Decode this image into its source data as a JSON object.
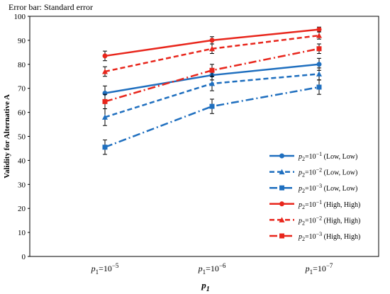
{
  "note": "Error bar: Standard error",
  "chart_data": {
    "type": "line",
    "title": "",
    "categories": [
      "p1=10^-5",
      "p1=10^-6",
      "p1=10^-7"
    ],
    "category_labels": [
      {
        "base": "p",
        "sub": "1",
        "eq": "=10",
        "exp": "−5"
      },
      {
        "base": "p",
        "sub": "1",
        "eq": "=10",
        "exp": "−6"
      },
      {
        "base": "p",
        "sub": "1",
        "eq": "=10",
        "exp": "−7"
      }
    ],
    "xlabel": {
      "base": "p",
      "sub": "1"
    },
    "ylabel": "Validity for Alternative A",
    "ylim": [
      0,
      100
    ],
    "yticks": [
      0,
      10,
      20,
      30,
      40,
      50,
      60,
      70,
      80,
      90,
      100
    ],
    "grid": false,
    "legend_position": "right",
    "series": [
      {
        "name": "p2=10^-1 (Low, Low)",
        "label": {
          "base": "p",
          "sub": "2",
          "eq": "=10",
          "exp": "−1",
          "rest": " (Low, Low)"
        },
        "color": "#1f6fbf",
        "dash": "solid",
        "marker": "circle",
        "values": [
          68,
          75.5,
          80
        ],
        "errors": [
          3,
          2,
          2.5
        ]
      },
      {
        "name": "p2=10^-2 (Low, Low)",
        "label": {
          "base": "p",
          "sub": "2",
          "eq": "=10",
          "exp": "−2",
          "rest": " (Low, Low)"
        },
        "color": "#1f6fbf",
        "dash": "dashed",
        "marker": "triangle",
        "values": [
          58,
          72,
          76
        ],
        "errors": [
          3.5,
          3,
          2.5
        ]
      },
      {
        "name": "p2=10^-3 (Low, Low)",
        "label": {
          "base": "p",
          "sub": "2",
          "eq": "=10",
          "exp": "−3",
          "rest": " (Low, Low)"
        },
        "color": "#1f6fbf",
        "dash": "dashdot",
        "marker": "square",
        "values": [
          45.5,
          62.5,
          70.5
        ],
        "errors": [
          3,
          3,
          3
        ]
      },
      {
        "name": "p2=10^-1 (High, High)",
        "label": {
          "base": "p",
          "sub": "2",
          "eq": "=10",
          "exp": "−1",
          "rest": " (High, High)"
        },
        "color": "#e8261c",
        "dash": "solid",
        "marker": "circle",
        "values": [
          83.5,
          90,
          94.5
        ],
        "errors": [
          2,
          1.5,
          1
        ]
      },
      {
        "name": "p2=10^-2 (High, High)",
        "label": {
          "base": "p",
          "sub": "2",
          "eq": "=10",
          "exp": "−2",
          "rest": " (High, High)"
        },
        "color": "#e8261c",
        "dash": "dashed",
        "marker": "triangle",
        "values": [
          77,
          86.5,
          92
        ],
        "errors": [
          2,
          2,
          1.5
        ]
      },
      {
        "name": "p2=10^-3 (High, High)",
        "label": {
          "base": "p",
          "sub": "2",
          "eq": "=10",
          "exp": "−3",
          "rest": " (High, High)"
        },
        "color": "#e8261c",
        "dash": "dashdot",
        "marker": "square",
        "values": [
          64.5,
          77.5,
          86.5
        ],
        "errors": [
          3,
          2.5,
          2
        ]
      }
    ]
  }
}
